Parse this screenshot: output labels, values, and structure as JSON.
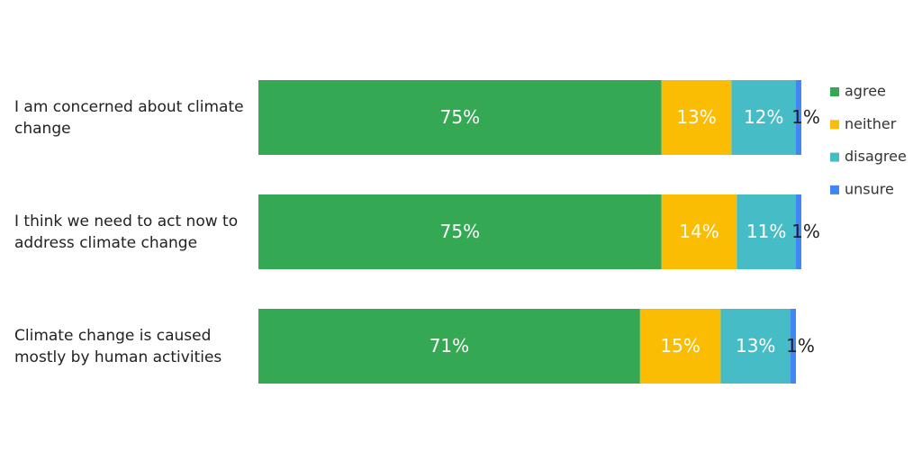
{
  "chart_data": {
    "type": "stacked-bar",
    "categories": [
      "I am concerned about climate change",
      "I think we need to act now to address climate change",
      "Climate change is caused mostly by human activities"
    ],
    "series": [
      {
        "name": "agree",
        "color": "#34a853",
        "values": [
          75,
          75,
          71
        ],
        "value_labels": [
          "75%",
          "75%",
          "71%"
        ]
      },
      {
        "name": "neither",
        "color": "#fbbc04",
        "values": [
          13,
          14,
          15
        ],
        "value_labels": [
          "13%",
          "14%",
          "15%"
        ]
      },
      {
        "name": "disagree",
        "color": "#46bdc6",
        "values": [
          12,
          11,
          13
        ],
        "value_labels": [
          "12%",
          "11%",
          "13%"
        ]
      },
      {
        "name": "unsure",
        "color": "#4285f4",
        "values": [
          1,
          1,
          1
        ],
        "value_labels": [
          "1%",
          "1%",
          "1%"
        ]
      }
    ],
    "legend": "right"
  }
}
